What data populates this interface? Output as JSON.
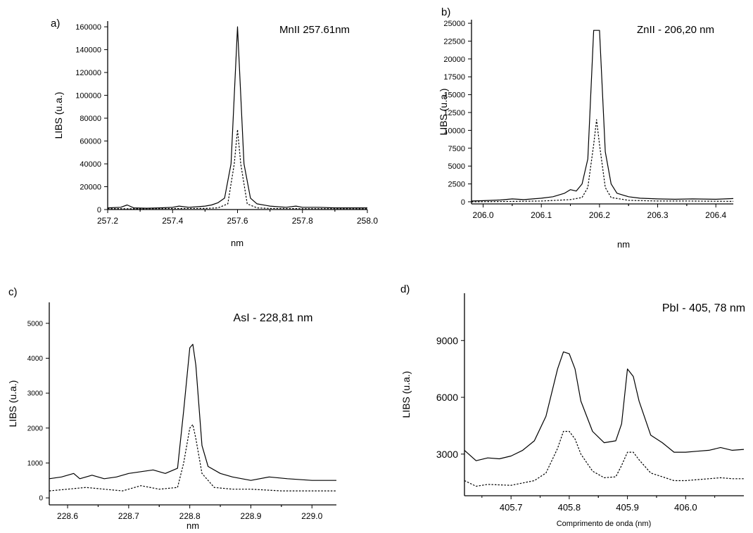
{
  "chart_data": [
    {
      "type": "line",
      "panel_label": "a)",
      "annotation": "MnII 257.61nm",
      "xlabel": "nm",
      "ylabel": "LIBS (u.a.)",
      "xlim": [
        257.2,
        258.0
      ],
      "ylim": [
        0,
        165000
      ],
      "x_ticks": [
        257.2,
        257.4,
        257.6,
        257.8,
        258.0
      ],
      "x_tick_labels": [
        "257.2",
        "257.4",
        "257.6",
        "257.8",
        "258.0"
      ],
      "y_ticks": [
        0,
        20000,
        40000,
        60000,
        80000,
        100000,
        120000,
        140000,
        160000
      ],
      "y_tick_labels": [
        "0",
        "20000",
        "40000",
        "60000",
        "80000",
        "100000",
        "120000",
        "140000",
        "160000"
      ],
      "series": [
        {
          "style": "solid",
          "x": [
            257.2,
            257.24,
            257.26,
            257.28,
            257.32,
            257.36,
            257.4,
            257.42,
            257.45,
            257.48,
            257.5,
            257.52,
            257.54,
            257.56,
            257.58,
            257.59,
            257.6,
            257.61,
            257.62,
            257.64,
            257.66,
            257.7,
            257.75,
            257.78,
            257.8,
            257.85,
            257.9,
            257.95,
            258.0
          ],
          "y": [
            1500,
            2000,
            4000,
            1500,
            1200,
            1500,
            2000,
            3000,
            2000,
            2500,
            3000,
            4000,
            6000,
            10000,
            40000,
            100000,
            160000,
            100000,
            40000,
            10000,
            5000,
            3000,
            2000,
            3000,
            2000,
            2000,
            1500,
            1500,
            1500
          ]
        },
        {
          "style": "dashed",
          "x": [
            257.2,
            257.3,
            257.4,
            257.5,
            257.54,
            257.57,
            257.59,
            257.6,
            257.61,
            257.63,
            257.66,
            257.7,
            257.8,
            257.9,
            258.0
          ],
          "y": [
            800,
            700,
            900,
            1000,
            1500,
            5000,
            40000,
            70000,
            40000,
            5000,
            1500,
            1000,
            800,
            800,
            700
          ]
        }
      ]
    },
    {
      "type": "line",
      "panel_label": "b)",
      "annotation": "ZnII - 206,20 nm",
      "xlabel": "nm",
      "ylabel": "LIBS (u.a.)",
      "xlim": [
        205.98,
        206.43
      ],
      "ylim": [
        -300,
        25500
      ],
      "x_ticks": [
        206.0,
        206.1,
        206.2,
        206.3,
        206.4
      ],
      "x_tick_labels": [
        "206.0",
        "206.1",
        "206.2",
        "206.3",
        "206.4"
      ],
      "y_ticks": [
        0,
        2500,
        5000,
        7500,
        10000,
        12500,
        15000,
        17500,
        20000,
        22500,
        25000
      ],
      "y_tick_labels": [
        "0",
        "2500",
        "5000",
        "7500",
        "10000",
        "12500",
        "15000",
        "17500",
        "20000",
        "22500",
        "25000"
      ],
      "series": [
        {
          "style": "solid",
          "x": [
            205.98,
            206.0,
            206.03,
            206.05,
            206.07,
            206.1,
            206.12,
            206.14,
            206.15,
            206.16,
            206.17,
            206.18,
            206.19,
            206.2,
            206.21,
            206.22,
            206.23,
            206.25,
            206.27,
            206.3,
            206.33,
            206.36,
            206.4,
            206.43
          ],
          "y": [
            100,
            150,
            250,
            400,
            300,
            500,
            700,
            1200,
            1700,
            1500,
            2500,
            6000,
            24000,
            24000,
            7000,
            2500,
            1200,
            700,
            500,
            400,
            350,
            400,
            350,
            450
          ]
        },
        {
          "style": "dashed",
          "x": [
            205.98,
            206.05,
            206.1,
            206.15,
            206.17,
            206.18,
            206.19,
            206.195,
            206.2,
            206.21,
            206.22,
            206.25,
            206.3,
            206.35,
            206.43
          ],
          "y": [
            0,
            50,
            100,
            300,
            600,
            2000,
            8000,
            11500,
            8000,
            2000,
            600,
            200,
            100,
            100,
            50
          ]
        }
      ]
    },
    {
      "type": "line",
      "panel_label": "c)",
      "annotation": "AsI - 228,81 nm",
      "xlabel": "nm",
      "ylabel": "LIBS (u.a.)",
      "xlim": [
        228.57,
        229.04
      ],
      "ylim": [
        -200,
        5600
      ],
      "x_ticks": [
        228.6,
        228.7,
        228.8,
        228.9,
        229.0
      ],
      "x_tick_labels": [
        "228.6",
        "228.7",
        "228.8",
        "228.9",
        "229.0"
      ],
      "y_ticks": [
        0,
        1000,
        2000,
        3000,
        4000,
        5000
      ],
      "y_tick_labels": [
        "0",
        "1000",
        "2000",
        "3000",
        "4000",
        "5000"
      ],
      "series": [
        {
          "style": "solid",
          "x": [
            228.57,
            228.59,
            228.61,
            228.62,
            228.64,
            228.66,
            228.68,
            228.7,
            228.72,
            228.74,
            228.76,
            228.78,
            228.79,
            228.8,
            228.805,
            228.81,
            228.82,
            228.83,
            228.85,
            228.87,
            228.9,
            228.93,
            228.96,
            229.0,
            229.04
          ],
          "y": [
            550,
            600,
            700,
            550,
            650,
            550,
            600,
            700,
            750,
            800,
            700,
            850,
            2500,
            4300,
            4400,
            3800,
            1500,
            900,
            700,
            600,
            500,
            600,
            550,
            500,
            500
          ]
        },
        {
          "style": "dashed",
          "x": [
            228.57,
            228.6,
            228.63,
            228.66,
            228.69,
            228.72,
            228.75,
            228.78,
            228.79,
            228.8,
            228.805,
            228.81,
            228.82,
            228.84,
            228.87,
            228.9,
            228.95,
            229.0,
            229.04
          ],
          "y": [
            200,
            250,
            300,
            250,
            200,
            350,
            250,
            300,
            1000,
            2000,
            2100,
            1700,
            700,
            300,
            250,
            250,
            200,
            200,
            200
          ]
        }
      ]
    },
    {
      "type": "line",
      "panel_label": "d)",
      "annotation": "PbI - 405, 78 nm",
      "xlabel": "Comprimento de onda (nm)",
      "ylabel": "LIBS (u.a.)",
      "xlim": [
        405.62,
        406.1
      ],
      "ylim": [
        800,
        11500
      ],
      "x_ticks": [
        405.7,
        405.8,
        405.9,
        406.0
      ],
      "x_tick_labels": [
        "405.7",
        "405.8",
        "405.9",
        "406.0"
      ],
      "y_ticks": [
        3000,
        6000,
        9000
      ],
      "y_tick_labels": [
        "3000",
        "6000",
        "9000"
      ],
      "series": [
        {
          "style": "solid",
          "x": [
            405.62,
            405.64,
            405.66,
            405.68,
            405.7,
            405.72,
            405.74,
            405.76,
            405.78,
            405.79,
            405.8,
            405.81,
            405.82,
            405.84,
            405.86,
            405.88,
            405.89,
            405.9,
            405.91,
            405.92,
            405.94,
            405.96,
            405.98,
            406.0,
            406.02,
            406.04,
            406.06,
            406.08,
            406.1
          ],
          "y": [
            3200,
            2650,
            2800,
            2750,
            2900,
            3200,
            3700,
            5000,
            7500,
            8400,
            8300,
            7500,
            5800,
            4200,
            3600,
            3700,
            4600,
            7500,
            7100,
            5800,
            4000,
            3600,
            3100,
            3100,
            3150,
            3200,
            3350,
            3200,
            3250
          ]
        },
        {
          "style": "dashed",
          "x": [
            405.62,
            405.64,
            405.66,
            405.7,
            405.74,
            405.76,
            405.78,
            405.79,
            405.8,
            405.81,
            405.82,
            405.84,
            405.86,
            405.88,
            405.89,
            405.9,
            405.91,
            405.92,
            405.94,
            405.96,
            405.98,
            406.0,
            406.04,
            406.06,
            406.08,
            406.1
          ],
          "y": [
            1600,
            1300,
            1400,
            1350,
            1600,
            2000,
            3300,
            4200,
            4200,
            3800,
            3000,
            2100,
            1750,
            1800,
            2400,
            3100,
            3100,
            2700,
            2000,
            1800,
            1600,
            1600,
            1700,
            1750,
            1700,
            1700
          ]
        }
      ]
    }
  ]
}
